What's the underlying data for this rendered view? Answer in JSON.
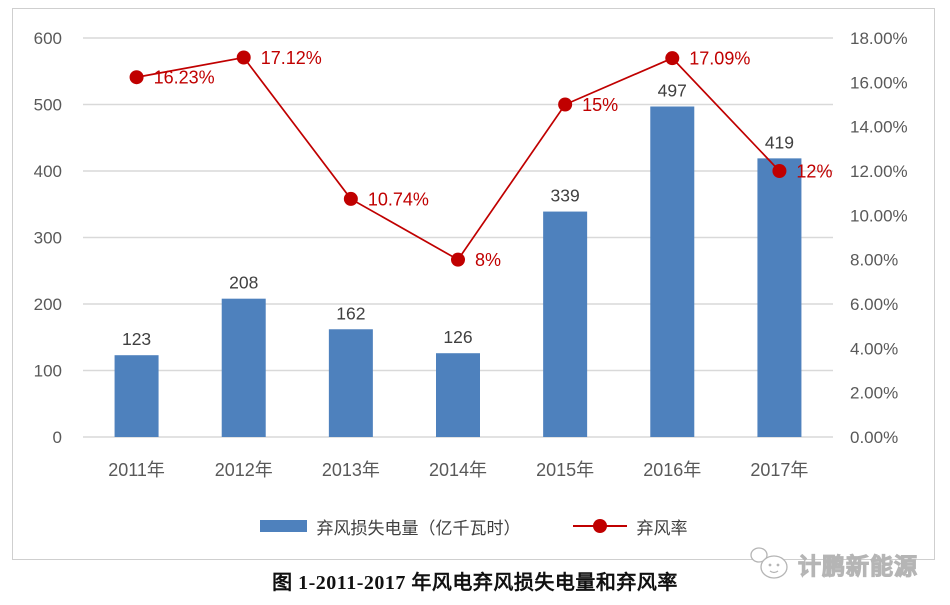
{
  "page": {
    "caption": "图  1-2011-2017 年风电弃风损失电量和弃风率",
    "watermark_text": "计鹏新能源"
  },
  "colors": {
    "bar": "#4e81bd",
    "line": "#c00000",
    "grid": "#d9d9d9",
    "axis_text": "#595959",
    "bar_label": "#404040",
    "rate_label": "#c00000",
    "frame_border": "#cfcfcf"
  },
  "chart_data": {
    "type": "combo-bar-line",
    "title": "图 1-2011-2017 年风电弃风损失电量和弃风率",
    "categories": [
      "2011年",
      "2012年",
      "2013年",
      "2014年",
      "2015年",
      "2016年",
      "2017年"
    ],
    "series": [
      {
        "name": "弃风损失电量（亿千瓦时）",
        "kind": "bar",
        "axis": "left",
        "values": [
          123,
          208,
          162,
          126,
          339,
          497,
          419
        ],
        "labels": [
          "123",
          "208",
          "162",
          "126",
          "339",
          "497",
          "419"
        ],
        "color": "#4e81bd"
      },
      {
        "name": "弃风率",
        "kind": "line",
        "axis": "right",
        "values": [
          16.23,
          17.12,
          10.74,
          8,
          15,
          17.09,
          12
        ],
        "labels": [
          "16.23%",
          "17.12%",
          "10.74%",
          "8%",
          "15%",
          "17.09%",
          "12%"
        ],
        "color": "#c00000"
      }
    ],
    "left_axis": {
      "min": 0,
      "max": 600,
      "step": 100,
      "ticks": [
        "600",
        "500",
        "400",
        "300",
        "200",
        "100",
        "0"
      ]
    },
    "right_axis": {
      "min": 0,
      "max": 18,
      "step": 2,
      "ticks": [
        "18.00%",
        "16.00%",
        "14.00%",
        "12.00%",
        "10.00%",
        "8.00%",
        "6.00%",
        "4.00%",
        "2.00%",
        "0.00%"
      ]
    },
    "legend": [
      {
        "label": "弃风损失电量（亿千瓦时）",
        "marker": "bar"
      },
      {
        "label": "弃风率",
        "marker": "line-dot"
      }
    ],
    "grid": true,
    "legend_position": "bottom"
  }
}
